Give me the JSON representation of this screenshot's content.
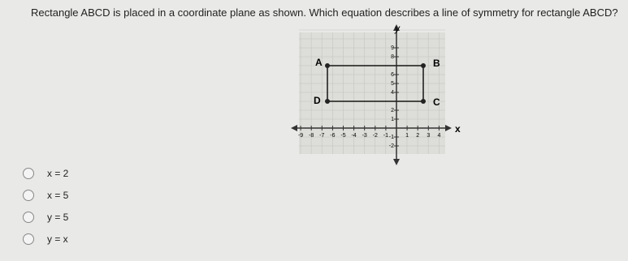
{
  "question": {
    "text": "Rectangle ABCD is placed in a coordinate plane as shown.  Which equation describes a line of symmetry for rectangle ABCD?"
  },
  "graph": {
    "x_axis_label": "x",
    "y_axis_label": "y",
    "vertices": [
      "A",
      "B",
      "C",
      "D"
    ],
    "x_ticks": [
      -9,
      -8,
      -7,
      -6,
      -5,
      -4,
      -3,
      -2,
      -1,
      1,
      2,
      3,
      4
    ],
    "y_ticks": [
      -2,
      -1,
      1,
      2,
      4,
      5,
      6,
      8,
      9
    ]
  },
  "options": [
    "x = 2",
    "x = 5",
    "y = 5",
    "y = x"
  ]
}
